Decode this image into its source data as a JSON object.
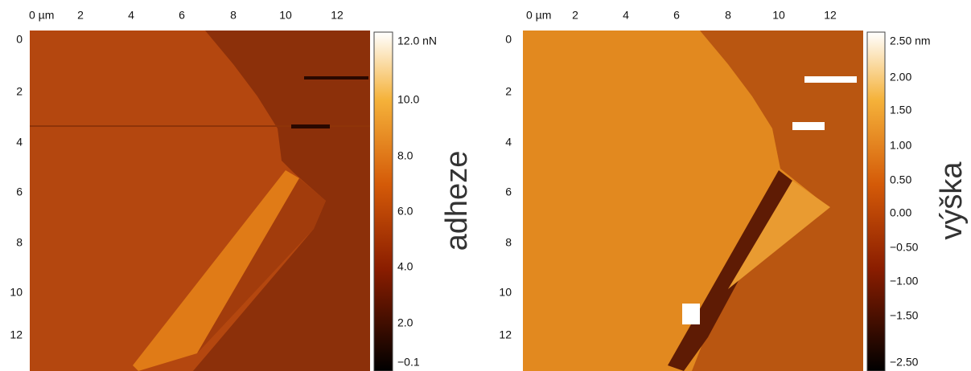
{
  "panels": [
    {
      "x_ticks": [
        "0 µm",
        "2",
        "4",
        "6",
        "8",
        "10",
        "12"
      ],
      "y_ticks": [
        "0",
        "2",
        "4",
        "6",
        "8",
        "10",
        "12"
      ],
      "colorbar_ticks": [
        "12.0 nN",
        "10.0",
        "8.0",
        "6.0",
        "4.0",
        "2.0",
        "−0.1"
      ],
      "colorbar_label": "adheze"
    },
    {
      "x_ticks": [
        "0 µm",
        "2",
        "4",
        "6",
        "8",
        "10",
        "12"
      ],
      "y_ticks": [
        "0",
        "2",
        "4",
        "6",
        "8",
        "10",
        "12"
      ],
      "colorbar_ticks": [
        "2.50 nm",
        "2.00",
        "1.50",
        "1.00",
        "0.50",
        "0.00",
        "−0.50",
        "−1.00",
        "−1.50",
        "−2.50"
      ],
      "colorbar_label": "výška"
    }
  ]
}
